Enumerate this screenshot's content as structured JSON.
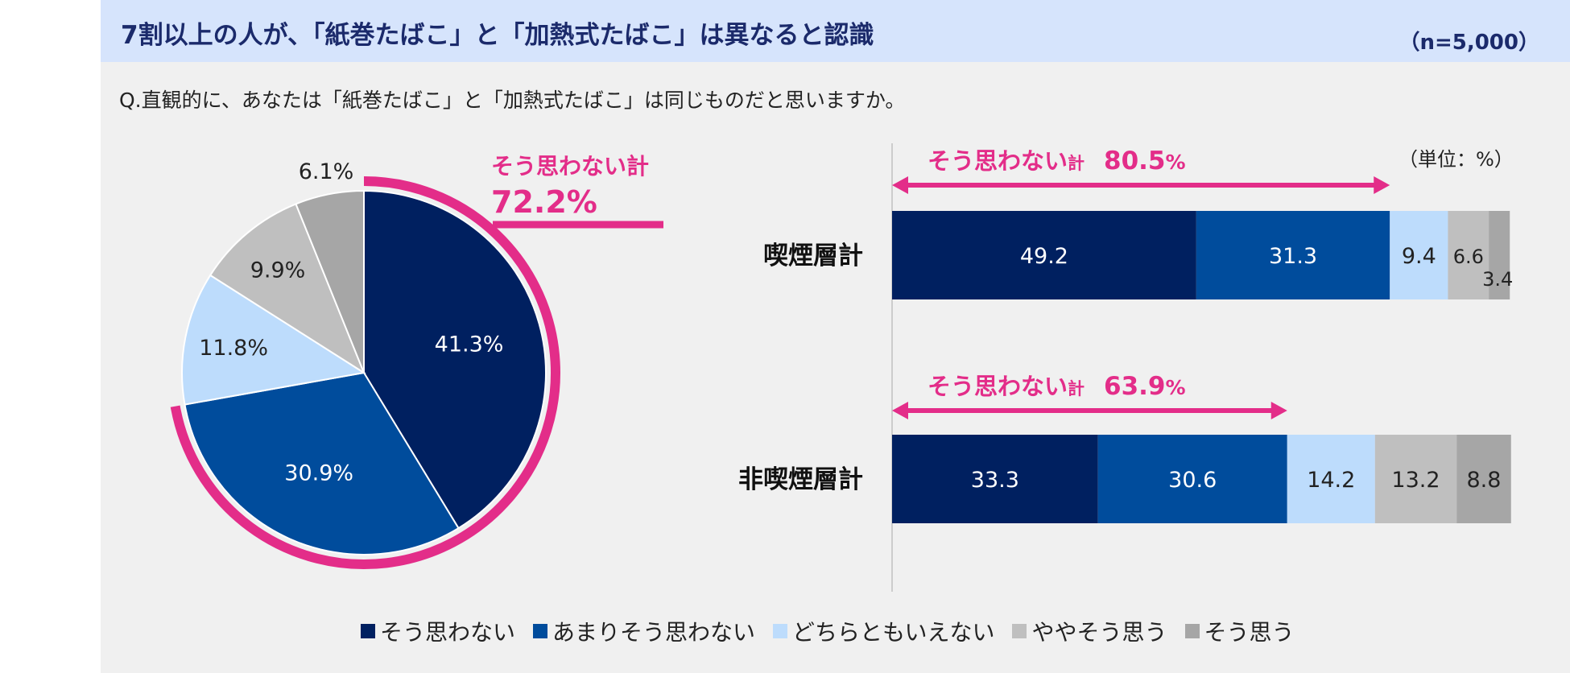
{
  "header": {
    "title": "7割以上の人が、「紙巻たばこ」と「加熱式たばこ」は異なると認識",
    "n_label": "（n=5,000）"
  },
  "question": "Q.直観的に、あなたは「紙巻たばこ」と「加熱式たばこ」は同じものだと思いますか。",
  "unit_label": "（単位：%）",
  "colors": [
    "#002060",
    "#004c9c",
    "#bddcfc",
    "#bfbfbf",
    "#a6a6a6"
  ],
  "accent": "#e32d89",
  "pie_callout": {
    "line1": "そう思わない計",
    "line2": "72.2%"
  },
  "bar_callouts": [
    {
      "prefix": "そう思わない",
      "suffix": "計",
      "value": "80.5",
      "unit": "%"
    },
    {
      "prefix": "そう思わない",
      "suffix": "計",
      "value": "63.9",
      "unit": "%"
    }
  ],
  "legend": [
    "そう思わない",
    "あまりそう思わない",
    "どちらともいえない",
    "ややそう思う",
    "そう思う"
  ],
  "chart_data": [
    {
      "type": "pie",
      "categories": [
        "そう思わない",
        "あまりそう思わない",
        "どちらともいえない",
        "ややそう思う",
        "そう思う"
      ],
      "values": [
        41.3,
        30.9,
        11.8,
        9.9,
        6.1
      ],
      "labels": [
        "41.3%",
        "30.9%",
        "11.8%",
        "9.9%",
        "6.1%"
      ],
      "annotation": "そう思わない計 72.2%"
    },
    {
      "type": "bar",
      "orientation": "horizontal-stacked",
      "categories": [
        "喫煙層計",
        "非喫煙層計"
      ],
      "series": [
        {
          "name": "そう思わない",
          "values": [
            49.2,
            33.3
          ]
        },
        {
          "name": "あまりそう思わない",
          "values": [
            31.3,
            30.6
          ]
        },
        {
          "name": "どちらともいえない",
          "values": [
            9.4,
            14.2
          ]
        },
        {
          "name": "ややそう思う",
          "values": [
            6.6,
            13.2
          ]
        },
        {
          "name": "そう思う",
          "values": [
            3.4,
            8.8
          ]
        }
      ],
      "data_labels": [
        [
          "49.2",
          "31.3",
          "9.4",
          "6.6",
          "3.4"
        ],
        [
          "33.3",
          "30.6",
          "14.2",
          "13.2",
          "8.8"
        ]
      ],
      "xlim": [
        0,
        100
      ],
      "annotations": [
        "そう思わない計 80.5%",
        "そう思わない計 63.9%"
      ]
    }
  ]
}
